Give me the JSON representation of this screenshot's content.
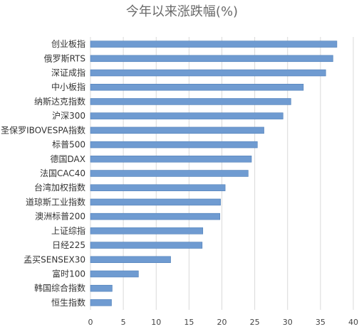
{
  "chart_data": {
    "type": "bar",
    "orientation": "horizontal",
    "title": "今年以来涨跌幅(%)",
    "xlabel": "",
    "ylabel": "",
    "xlim": [
      0,
      40
    ],
    "x_ticks": [
      "0",
      "5",
      "10",
      "15",
      "20",
      "25",
      "30",
      "35",
      "40"
    ],
    "grid": "vertical",
    "legend": "none",
    "bar_color": "#6f9bd1",
    "bar_edge_color": "#4f7fb8",
    "categories": [
      "创业板指",
      "俄罗斯RTS",
      "深证成指",
      "中小板指",
      "纳斯达克指数",
      "沪深300",
      "圣保罗IBOVESPA指数",
      "标普500",
      "德国DAX",
      "法国CAC40",
      "台湾加权指数",
      "道琼斯工业指数",
      "澳洲标普200",
      "上证综指",
      "日经225",
      "孟买SENSEX30",
      "富时100",
      "韩国综合指数",
      "恒生指数"
    ],
    "values": [
      37.5,
      36.9,
      35.8,
      32.4,
      30.5,
      29.3,
      26.4,
      25.4,
      24.5,
      24.0,
      20.5,
      19.8,
      19.7,
      17.1,
      17.0,
      12.2,
      7.3,
      3.3,
      3.2
    ]
  }
}
